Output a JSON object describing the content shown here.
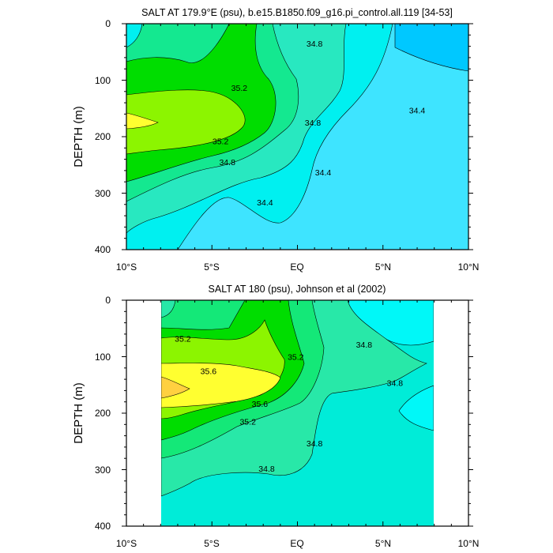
{
  "chart_data": [
    {
      "type": "contour",
      "title": "SALT AT 179.9°E (psu), b.e15.B1850.f09_g16.pi_control.all.119 [34-53]",
      "ylabel": "DEPTH (m)",
      "xlim": [
        -10,
        10
      ],
      "ylim": [
        400,
        0
      ],
      "x_ticks": [
        "10°S",
        "5°S",
        "EQ",
        "5°N",
        "10°N"
      ],
      "y_ticks": [
        "0",
        "100",
        "200",
        "300",
        "400"
      ],
      "contour_labels": [
        {
          "text": "35.2",
          "x": -3.4,
          "y": 113
        },
        {
          "text": "35.2",
          "x": -4.5,
          "y": 208
        },
        {
          "text": "34.8",
          "x": 1.0,
          "y": 35
        },
        {
          "text": "34.8",
          "x": 0.9,
          "y": 175
        },
        {
          "text": "34.8",
          "x": -4.1,
          "y": 245
        },
        {
          "text": "34.4",
          "x": -1.9,
          "y": 316
        },
        {
          "text": "34.4",
          "x": 1.5,
          "y": 263
        },
        {
          "text": "34.4",
          "x": 7.0,
          "y": 153
        }
      ]
    },
    {
      "type": "contour",
      "title": "SALT AT 180 (psu), Johnson et al (2002)",
      "ylabel": "DEPTH (m)",
      "xlim": [
        -10,
        10
      ],
      "ylim": [
        400,
        0
      ],
      "x_ticks": [
        "10°S",
        "5°S",
        "EQ",
        "5°N",
        "10°N"
      ],
      "y_ticks": [
        "0",
        "100",
        "200",
        "300",
        "400"
      ],
      "contour_labels": [
        {
          "text": "35.2",
          "x": -6.7,
          "y": 68
        },
        {
          "text": "35.6",
          "x": -5.2,
          "y": 125
        },
        {
          "text": "35.6",
          "x": -2.2,
          "y": 183
        },
        {
          "text": "35.2",
          "x": -2.9,
          "y": 215
        },
        {
          "text": "35.2",
          "x": -0.1,
          "y": 100
        },
        {
          "text": "34.8",
          "x": 3.9,
          "y": 78
        },
        {
          "text": "34.8",
          "x": 5.7,
          "y": 146
        },
        {
          "text": "34.8",
          "x": 1.0,
          "y": 253
        },
        {
          "text": "34.8",
          "x": -1.8,
          "y": 298
        }
      ]
    }
  ]
}
